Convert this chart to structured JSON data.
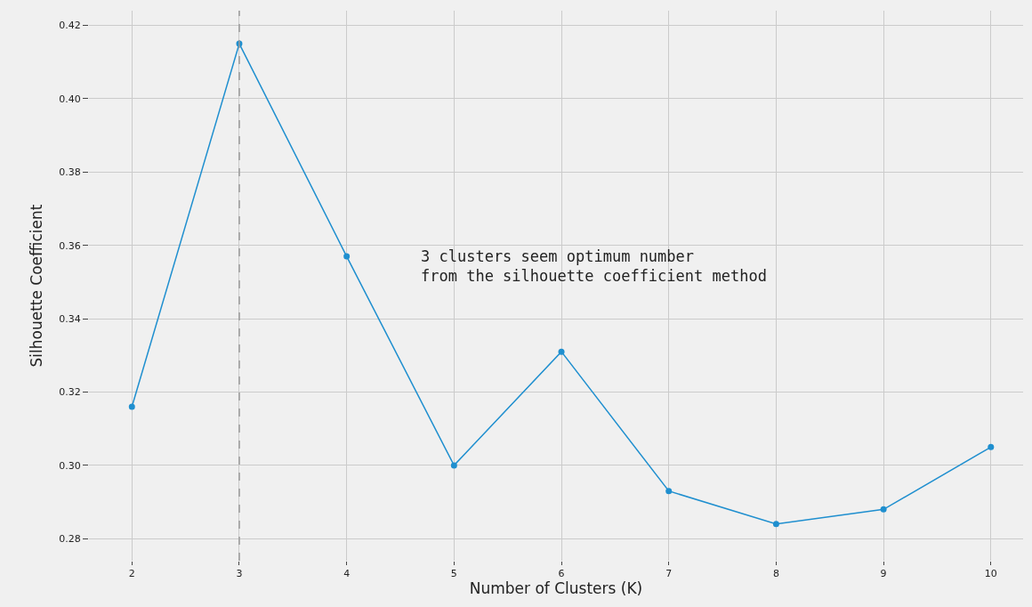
{
  "chart_data": {
    "type": "line",
    "xlabel": "Number of Clusters (K)",
    "ylabel": "Silhouette Coefficient",
    "x": [
      2,
      3,
      4,
      5,
      6,
      7,
      8,
      9,
      10
    ],
    "series": [
      {
        "color": "#1f8fcf",
        "values": [
          0.316,
          0.415,
          0.357,
          0.3,
          0.331,
          0.293,
          0.284,
          0.288,
          0.305
        ]
      }
    ],
    "xlim": [
      1.6,
      10.3
    ],
    "xticks": [
      2,
      3,
      4,
      5,
      6,
      7,
      8,
      9,
      10
    ],
    "ylim": [
      0.274,
      0.424
    ],
    "yticks": [
      0.28,
      {
        "value": 0.3,
        "label": "0.30"
      },
      0.32,
      0.34,
      0.36,
      0.38,
      {
        "value": 0.4,
        "label": "0.40"
      },
      0.42
    ],
    "ref_lines": [
      {
        "axis": "x",
        "value": 3,
        "color": "#999999",
        "line_style": "dashed"
      }
    ],
    "annotations": [
      "3 clusters seem optimum number\nfrom the silhouette coefficient method"
    ],
    "grid": true,
    "marker": "circle",
    "line_style": "solid"
  }
}
